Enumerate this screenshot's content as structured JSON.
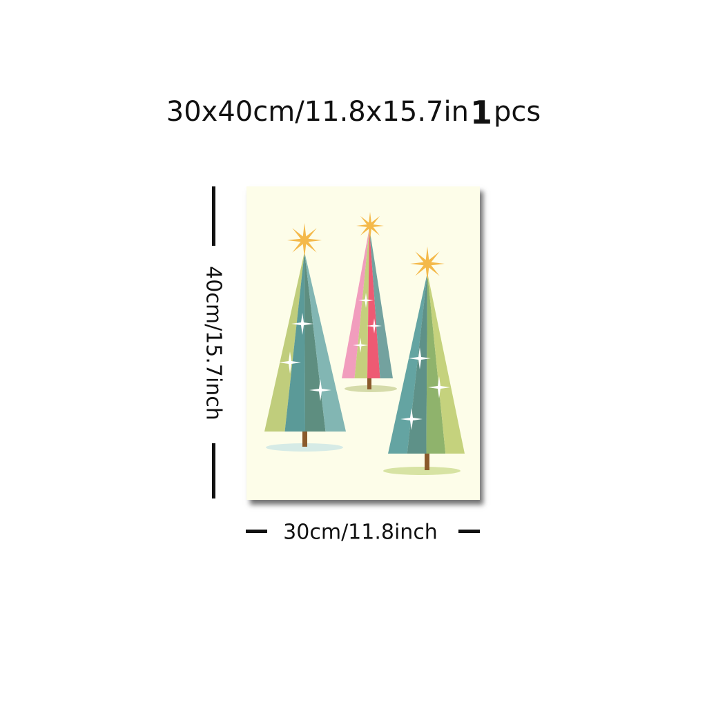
{
  "header": {
    "size_text": "30x40cm/11.8x15.7in",
    "quantity": "1",
    "unit": "pcs"
  },
  "dimensions": {
    "height_label": "40cm/15.7inch",
    "width_label": "30cm/11.8inch"
  },
  "artwork": {
    "background_color": "#fdfde9",
    "trees": [
      {
        "name": "left-tree",
        "colors": [
          "#c0cd7c",
          "#5b9a98",
          "#5e8e80",
          "#82b6b3"
        ],
        "star_color": "#f4b94a",
        "shadow_color": "#d6ebe6"
      },
      {
        "name": "middle-tree",
        "colors": [
          "#f19dbd",
          "#c5cf7d",
          "#ee5a73",
          "#73a29f"
        ],
        "star_color": "#f4b94a",
        "shadow_color": "#d5dba9"
      },
      {
        "name": "right-tree",
        "colors": [
          "#64a4a2",
          "#5e9188",
          "#8fb36c",
          "#c5d27d"
        ],
        "star_color": "#f4b94a",
        "shadow_color": "#d7e3a3"
      }
    ],
    "trunk_color": "#8a5a2b",
    "sparkle_color": "#ffffff"
  }
}
